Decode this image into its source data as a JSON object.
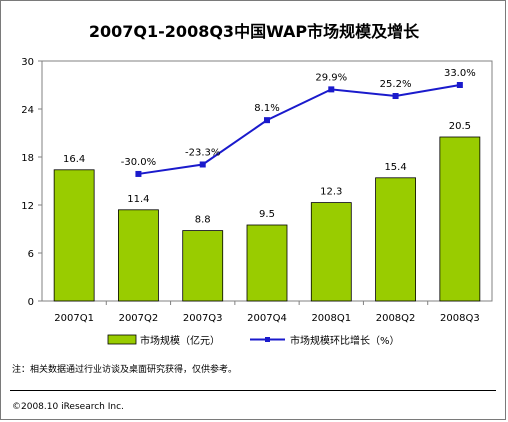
{
  "chart_data": {
    "type": "bar",
    "title": "2007Q1-2008Q3中国WAP市场规模及增长",
    "categories": [
      "2007Q1",
      "2007Q2",
      "2007Q3",
      "2007Q4",
      "2008Q1",
      "2008Q2",
      "2008Q3"
    ],
    "bar_series": {
      "name": "市场规模（亿元）",
      "values": [
        16.4,
        11.4,
        8.8,
        9.5,
        12.3,
        15.4,
        20.5
      ],
      "labels": [
        "16.4",
        "11.4",
        "8.8",
        "9.5",
        "12.3",
        "15.4",
        "20.5"
      ],
      "color": "#99cc00"
    },
    "line_series": {
      "name": "市场规模环比增长（%）",
      "values": [
        null,
        -30.0,
        -23.3,
        8.1,
        29.9,
        25.2,
        33.0
      ],
      "labels": [
        "",
        "-30.0%",
        "-23.3%",
        "8.1%",
        "29.9%",
        "25.2%",
        "33.0%"
      ],
      "color": "#1a1acc"
    },
    "y_ticks": [
      "30",
      "24",
      "18",
      "12",
      "6",
      "0"
    ],
    "ylim": [
      0,
      30
    ],
    "legend_placement": "bottom"
  },
  "footnote": "注：相关数据通过行业访谈及桌面研究获得，仅供参考。",
  "copyright": "©2008.10 iResearch Inc."
}
